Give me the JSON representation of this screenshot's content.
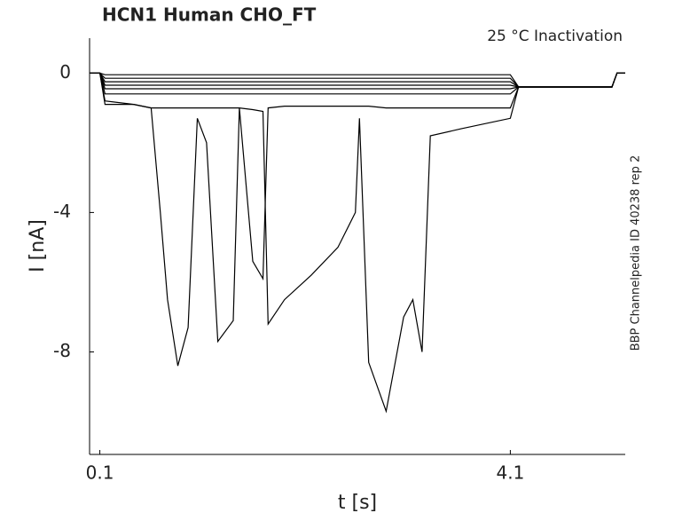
{
  "chart_data": {
    "type": "line",
    "title": "HCN1  Human  CHO_FT",
    "annotation": "25 °C  Inactivation",
    "side_note": "BBP Channelpedia ID 40238 rep 2",
    "xlabel": "t [s]",
    "ylabel": "I [nA]",
    "x": [
      0,
      0.1,
      0.15,
      0.43,
      0.6,
      0.69,
      0.76,
      0.86,
      0.96,
      1.05,
      1.14,
      1.25,
      1.4,
      1.46,
      1.59,
      1.69,
      1.74,
      1.9,
      2.16,
      2.42,
      2.59,
      2.63,
      2.72,
      2.89,
      3.06,
      3.15,
      3.24,
      3.32,
      3.62,
      4.1,
      4.18,
      5.09,
      5.14,
      5.22
    ],
    "series": [
      {
        "color": "#000000",
        "values": [
          0,
          0,
          -0.8,
          -0.9,
          -1.0,
          -4.0,
          -6.5,
          -8.4,
          -7.3,
          -1.3,
          -2.0,
          -7.7,
          -7.1,
          -1.0,
          -5.4,
          -5.9,
          -1.0,
          -0.95,
          -0.95,
          -0.95,
          -0.95,
          -0.95,
          -0.95,
          -1.0,
          -1.0,
          -1.0,
          -1.0,
          -1.0,
          -1.0,
          -1.0,
          -0.4,
          -0.4,
          0,
          0
        ]
      },
      {
        "color": "#000000",
        "values": [
          0,
          0,
          -0.9,
          -0.9,
          -1.0,
          -1.0,
          -1.0,
          -1.0,
          -1.0,
          -1.0,
          -1.0,
          -1.0,
          -1.0,
          -1.0,
          -1.05,
          -1.1,
          -7.2,
          -6.5,
          -5.8,
          -5.0,
          -4.0,
          -1.3,
          -8.3,
          -9.7,
          -7.0,
          -6.5,
          -8.0,
          -1.8,
          -1.6,
          -1.3,
          -0.4,
          -0.4,
          0,
          0
        ]
      },
      {
        "color": "#000000",
        "values": [
          0,
          0,
          -0.6,
          -0.6,
          -0.6,
          -0.6,
          -0.6,
          -0.6,
          -0.6,
          -0.6,
          -0.6,
          -0.6,
          -0.6,
          -0.6,
          -0.6,
          -0.6,
          -0.6,
          -0.6,
          -0.6,
          -0.6,
          -0.6,
          -0.6,
          -0.6,
          -0.6,
          -0.6,
          -0.6,
          -0.6,
          -0.6,
          -0.6,
          -0.6,
          -0.4,
          -0.4,
          0,
          0
        ]
      },
      {
        "color": "#000000",
        "values": [
          0,
          0,
          -0.45,
          -0.45,
          -0.45,
          -0.45,
          -0.45,
          -0.45,
          -0.45,
          -0.45,
          -0.45,
          -0.45,
          -0.45,
          -0.45,
          -0.45,
          -0.45,
          -0.45,
          -0.45,
          -0.45,
          -0.45,
          -0.45,
          -0.45,
          -0.45,
          -0.45,
          -0.45,
          -0.45,
          -0.45,
          -0.45,
          -0.45,
          -0.45,
          -0.4,
          -0.4,
          0,
          0
        ]
      },
      {
        "color": "#000000",
        "values": [
          0,
          0,
          -0.35,
          -0.35,
          -0.35,
          -0.35,
          -0.35,
          -0.35,
          -0.35,
          -0.35,
          -0.35,
          -0.35,
          -0.35,
          -0.35,
          -0.35,
          -0.35,
          -0.35,
          -0.35,
          -0.35,
          -0.35,
          -0.35,
          -0.35,
          -0.35,
          -0.35,
          -0.35,
          -0.35,
          -0.35,
          -0.35,
          -0.35,
          -0.35,
          -0.4,
          -0.4,
          0,
          0
        ]
      },
      {
        "color": "#000000",
        "values": [
          0,
          0,
          -0.25,
          -0.25,
          -0.25,
          -0.25,
          -0.25,
          -0.25,
          -0.25,
          -0.25,
          -0.25,
          -0.25,
          -0.25,
          -0.25,
          -0.25,
          -0.25,
          -0.25,
          -0.25,
          -0.25,
          -0.25,
          -0.25,
          -0.25,
          -0.25,
          -0.25,
          -0.25,
          -0.25,
          -0.25,
          -0.25,
          -0.25,
          -0.25,
          -0.4,
          -0.4,
          0,
          0
        ]
      },
      {
        "color": "#000000",
        "values": [
          0,
          0,
          -0.15,
          -0.15,
          -0.15,
          -0.15,
          -0.15,
          -0.15,
          -0.15,
          -0.15,
          -0.15,
          -0.15,
          -0.15,
          -0.15,
          -0.15,
          -0.15,
          -0.15,
          -0.15,
          -0.15,
          -0.15,
          -0.15,
          -0.15,
          -0.15,
          -0.15,
          -0.15,
          -0.15,
          -0.15,
          -0.15,
          -0.15,
          -0.15,
          -0.4,
          -0.4,
          0,
          0
        ]
      },
      {
        "color": "#000000",
        "values": [
          0,
          0,
          -0.05,
          -0.05,
          -0.05,
          -0.05,
          -0.05,
          -0.05,
          -0.05,
          -0.05,
          -0.05,
          -0.05,
          -0.05,
          -0.05,
          -0.05,
          -0.05,
          -0.05,
          -0.05,
          -0.05,
          -0.05,
          -0.05,
          -0.05,
          -0.05,
          -0.05,
          -0.05,
          -0.05,
          -0.05,
          -0.05,
          -0.05,
          -0.05,
          -0.4,
          -0.4,
          0,
          0
        ]
      }
    ],
    "xlim": [
      0,
      5.22
    ],
    "ylim": [
      -10.94,
      1
    ],
    "xticks": [
      0.1,
      4.1
    ],
    "yticks": [
      0,
      -4,
      -8
    ]
  }
}
